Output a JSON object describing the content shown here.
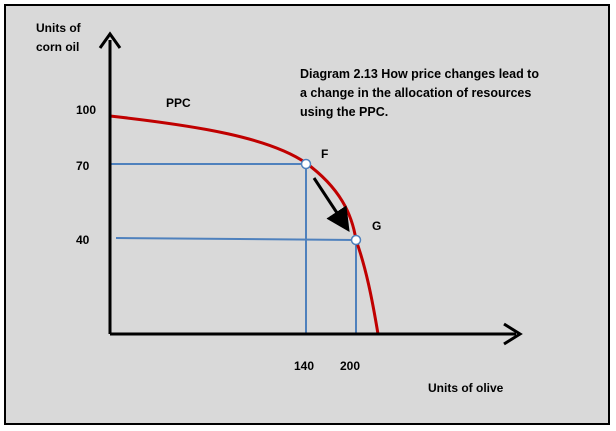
{
  "diagram": {
    "title_lines": [
      "Diagram  2.13  How price changes lead to",
      "a change  in the allocation  of resources",
      "using the PPC."
    ],
    "y_axis_label_lines": [
      "Units of",
      "corn  oil"
    ],
    "x_axis_label": "Units of olive",
    "curve_label": "PPC",
    "points": [
      {
        "label": "F",
        "x": 140,
        "y": 70
      },
      {
        "label": "G",
        "x": 200,
        "y": 40
      }
    ],
    "y_ticks": [
      "100",
      "70",
      "40"
    ],
    "x_ticks": [
      "140",
      "200"
    ],
    "y_intercept": 100,
    "colors": {
      "background": "#d9d9d9",
      "border": "#000000",
      "curve": "#c00000",
      "guides": "#4f81bd",
      "axes": "#000000"
    }
  }
}
